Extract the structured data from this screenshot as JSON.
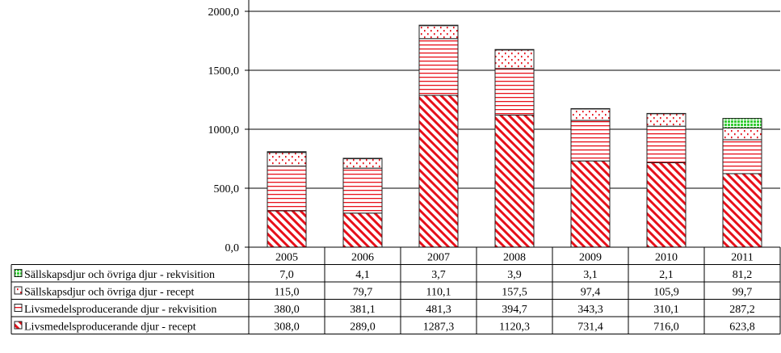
{
  "chart_data": {
    "type": "bar",
    "stacked": true,
    "categories": [
      "2005",
      "2006",
      "2007",
      "2008",
      "2009",
      "2010",
      "2011"
    ],
    "ylim": [
      0,
      2000
    ],
    "yticks": [
      "0,0",
      "500,0",
      "1000,0",
      "1500,0",
      "2000,0"
    ],
    "grid": "horizontal",
    "legend_placement": "data-table-left",
    "series": [
      {
        "name": "Livsmedelsproducerande djur - recept",
        "values": [
          308.0,
          289.0,
          1287.3,
          1120.3,
          731.4,
          716.0,
          623.8
        ],
        "labels": [
          "308,0",
          "289,0",
          "1287,3",
          "1120,3",
          "731,4",
          "716,0",
          "623,8"
        ],
        "pattern": "diagonal",
        "color": "#e8101a"
      },
      {
        "name": "Livsmedelsproducerande djur - rekvisition",
        "values": [
          380.0,
          381.1,
          481.3,
          394.7,
          343.3,
          310.1,
          287.2
        ],
        "labels": [
          "380,0",
          "381,1",
          "481,3",
          "394,7",
          "343,3",
          "310,1",
          "287,2"
        ],
        "pattern": "horizontal",
        "color": "#e8101a"
      },
      {
        "name": "Sällskapsdjur och övriga djur - recept",
        "values": [
          115.0,
          79.7,
          110.1,
          157.5,
          97.4,
          105.9,
          99.7
        ],
        "labels": [
          "115,0",
          "79,7",
          "110,1",
          "157,5",
          "97,4",
          "105,9",
          "99,7"
        ],
        "pattern": "dots",
        "color": "#e8101a"
      },
      {
        "name": "Sällskapsdjur och övriga djur - rekvisition",
        "values": [
          7.0,
          4.1,
          3.7,
          3.9,
          3.1,
          2.1,
          81.2
        ],
        "labels": [
          "7,0",
          "4,1",
          "3,7",
          "3,9",
          "3,1",
          "2,1",
          "81,2"
        ],
        "pattern": "grid",
        "color": "#33cc33"
      }
    ]
  }
}
